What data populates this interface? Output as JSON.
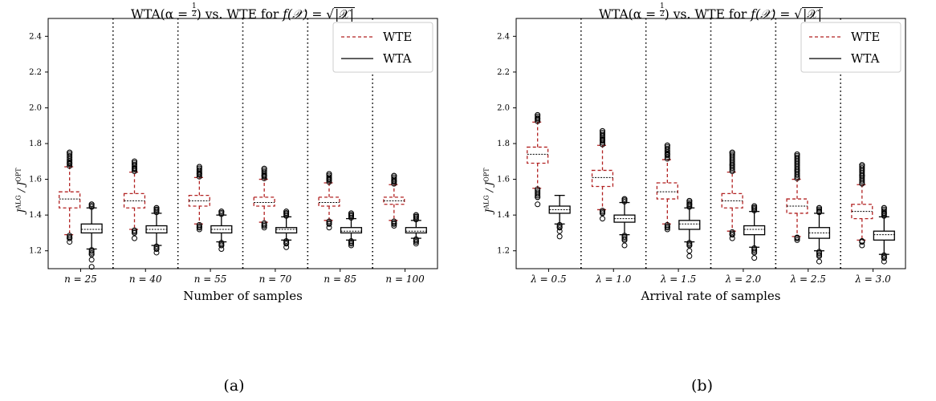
{
  "chart_data": [
    {
      "type": "box",
      "caption": "(a)",
      "title_prefix": "WTA",
      "title_mid": " vs. WTE for ",
      "title_fx": "f(𝒳) = ",
      "title_sqrt": "|𝒳|",
      "alpha_text": "(α = ",
      "alpha_close": ")",
      "half_num": "1",
      "half_den": "2",
      "xlabel": "Number of samples",
      "ylabel": "J",
      "ylabel_sup1": "ALG",
      "ylabel_mid": " / J",
      "ylabel_sup2": "OPT",
      "ylim": [
        1.1,
        2.5
      ],
      "yticks": [
        1.2,
        1.4,
        1.6,
        1.8,
        2.0,
        2.2,
        2.4
      ],
      "ytick_labels": [
        "1.2",
        "1.4",
        "1.6",
        "1.8",
        "2.0",
        "2.2",
        "2.4"
      ],
      "categories": [
        "n = 25",
        "n = 40",
        "n = 55",
        "n = 70",
        "n = 85",
        "n = 100"
      ],
      "legend_position": "top-right",
      "series": [
        {
          "name": "WTE",
          "color": "#b22222",
          "line": "dashed",
          "boxes": [
            {
              "whislo": 1.29,
              "q1": 1.44,
              "med": 1.49,
              "q3": 1.53,
              "whishi": 1.67,
              "fliers_lo": [
                1.25,
                1.27
              ],
              "fliers_hi": [
                1.69,
                1.75
              ]
            },
            {
              "whislo": 1.32,
              "q1": 1.44,
              "med": 1.48,
              "q3": 1.52,
              "whishi": 1.64,
              "fliers_lo": [
                1.27,
                1.3
              ],
              "fliers_hi": [
                1.66,
                1.7
              ]
            },
            {
              "whislo": 1.35,
              "q1": 1.45,
              "med": 1.48,
              "q3": 1.51,
              "whishi": 1.61,
              "fliers_lo": [
                1.32,
                1.33
              ],
              "fliers_hi": [
                1.63,
                1.67
              ]
            },
            {
              "whislo": 1.36,
              "q1": 1.45,
              "med": 1.47,
              "q3": 1.5,
              "whishi": 1.6,
              "fliers_lo": [
                1.33,
                1.34
              ],
              "fliers_hi": [
                1.62,
                1.66
              ]
            },
            {
              "whislo": 1.37,
              "q1": 1.45,
              "med": 1.47,
              "q3": 1.5,
              "whishi": 1.58,
              "fliers_lo": [
                1.33,
                1.35
              ],
              "fliers_hi": [
                1.6,
                1.63
              ]
            },
            {
              "whislo": 1.37,
              "q1": 1.46,
              "med": 1.48,
              "q3": 1.5,
              "whishi": 1.57,
              "fliers_lo": [
                1.34,
                1.35
              ],
              "fliers_hi": [
                1.59,
                1.62
              ]
            }
          ]
        },
        {
          "name": "WTA",
          "color": "#000000",
          "line": "solid",
          "boxes": [
            {
              "whislo": 1.21,
              "q1": 1.3,
              "med": 1.32,
              "q3": 1.35,
              "whishi": 1.44,
              "fliers_lo": [
                1.11,
                1.15,
                1.18
              ],
              "fliers_hi": [
                1.46
              ]
            },
            {
              "whislo": 1.23,
              "q1": 1.3,
              "med": 1.32,
              "q3": 1.34,
              "whishi": 1.41,
              "fliers_lo": [
                1.19,
                1.21
              ],
              "fliers_hi": [
                1.43,
                1.44
              ]
            },
            {
              "whislo": 1.25,
              "q1": 1.3,
              "med": 1.32,
              "q3": 1.34,
              "whishi": 1.4,
              "fliers_lo": [
                1.21,
                1.23
              ],
              "fliers_hi": [
                1.42
              ]
            },
            {
              "whislo": 1.26,
              "q1": 1.3,
              "med": 1.32,
              "q3": 1.33,
              "whishi": 1.39,
              "fliers_lo": [
                1.22,
                1.24
              ],
              "fliers_hi": [
                1.41,
                1.42
              ]
            },
            {
              "whislo": 1.26,
              "q1": 1.3,
              "med": 1.31,
              "q3": 1.33,
              "whishi": 1.38,
              "fliers_lo": [
                1.23,
                1.24
              ],
              "fliers_hi": [
                1.4,
                1.41
              ]
            },
            {
              "whislo": 1.27,
              "q1": 1.3,
              "med": 1.31,
              "q3": 1.33,
              "whishi": 1.37,
              "fliers_lo": [
                1.24,
                1.25
              ],
              "fliers_hi": [
                1.39,
                1.4
              ]
            }
          ]
        }
      ]
    },
    {
      "type": "box",
      "caption": "(b)",
      "title_prefix": "WTA",
      "title_mid": " vs. WTE for ",
      "title_fx": "f(𝒳) = ",
      "title_sqrt": "|𝒳|",
      "alpha_text": "(α = ",
      "alpha_close": ")",
      "half_num": "1",
      "half_den": "2",
      "xlabel": "Arrival rate of samples",
      "ylabel": "J",
      "ylabel_sup1": "ALG",
      "ylabel_mid": " / J",
      "ylabel_sup2": "OPT",
      "ylim": [
        1.1,
        2.5
      ],
      "yticks": [
        1.2,
        1.4,
        1.6,
        1.8,
        2.0,
        2.2,
        2.4
      ],
      "ytick_labels": [
        "1.2",
        "1.4",
        "1.6",
        "1.8",
        "2.0",
        "2.2",
        "2.4"
      ],
      "categories": [
        "λ = 0.5",
        "λ = 1.0",
        "λ = 1.5",
        "λ = 2.0",
        "λ = 2.5",
        "λ = 3.0"
      ],
      "legend_position": "top-right",
      "series": [
        {
          "name": "WTE",
          "color": "#b22222",
          "line": "dashed",
          "boxes": [
            {
              "whislo": 1.55,
              "q1": 1.69,
              "med": 1.74,
              "q3": 1.78,
              "whishi": 1.92,
              "fliers_lo": [
                1.46,
                1.5
              ],
              "fliers_hi": [
                1.94,
                1.96
              ]
            },
            {
              "whislo": 1.43,
              "q1": 1.56,
              "med": 1.61,
              "q3": 1.65,
              "whishi": 1.79,
              "fliers_lo": [
                1.38,
                1.41
              ],
              "fliers_hi": [
                1.82,
                1.87
              ]
            },
            {
              "whislo": 1.35,
              "q1": 1.49,
              "med": 1.53,
              "q3": 1.58,
              "whishi": 1.71,
              "fliers_lo": [
                1.32,
                1.33
              ],
              "fliers_hi": [
                1.74,
                1.79
              ]
            },
            {
              "whislo": 1.31,
              "q1": 1.44,
              "med": 1.48,
              "q3": 1.52,
              "whishi": 1.64,
              "fliers_lo": [
                1.27,
                1.29
              ],
              "fliers_hi": [
                1.68,
                1.75
              ]
            },
            {
              "whislo": 1.28,
              "q1": 1.41,
              "med": 1.45,
              "q3": 1.49,
              "whishi": 1.6,
              "fliers_lo": [
                1.26,
                1.27
              ],
              "fliers_hi": [
                1.65,
                1.74
              ]
            },
            {
              "whislo": 1.26,
              "q1": 1.38,
              "med": 1.42,
              "q3": 1.46,
              "whishi": 1.57,
              "fliers_lo": [
                1.23,
                1.25
              ],
              "fliers_hi": [
                1.62,
                1.68
              ]
            }
          ]
        },
        {
          "name": "WTA",
          "color": "#000000",
          "line": "solid",
          "boxes": [
            {
              "whislo": 1.35,
              "q1": 1.41,
              "med": 1.43,
              "q3": 1.45,
              "whishi": 1.51,
              "fliers_lo": [
                1.28,
                1.31,
                1.33
              ],
              "fliers_hi": []
            },
            {
              "whislo": 1.29,
              "q1": 1.36,
              "med": 1.38,
              "q3": 1.4,
              "whishi": 1.47,
              "fliers_lo": [
                1.23,
                1.26
              ],
              "fliers_hi": [
                1.49
              ]
            },
            {
              "whislo": 1.25,
              "q1": 1.32,
              "med": 1.35,
              "q3": 1.37,
              "whishi": 1.44,
              "fliers_lo": [
                1.17,
                1.2,
                1.23
              ],
              "fliers_hi": [
                1.46,
                1.48
              ]
            },
            {
              "whislo": 1.22,
              "q1": 1.29,
              "med": 1.32,
              "q3": 1.34,
              "whishi": 1.42,
              "fliers_lo": [
                1.16,
                1.19
              ],
              "fliers_hi": [
                1.44,
                1.45
              ]
            },
            {
              "whislo": 1.2,
              "q1": 1.27,
              "med": 1.3,
              "q3": 1.33,
              "whishi": 1.41,
              "fliers_lo": [
                1.14,
                1.17
              ],
              "fliers_hi": [
                1.42,
                1.44
              ]
            },
            {
              "whislo": 1.18,
              "q1": 1.26,
              "med": 1.29,
              "q3": 1.31,
              "whishi": 1.39,
              "fliers_lo": [
                1.14,
                1.16
              ],
              "fliers_hi": [
                1.41,
                1.44
              ]
            }
          ]
        }
      ]
    }
  ]
}
